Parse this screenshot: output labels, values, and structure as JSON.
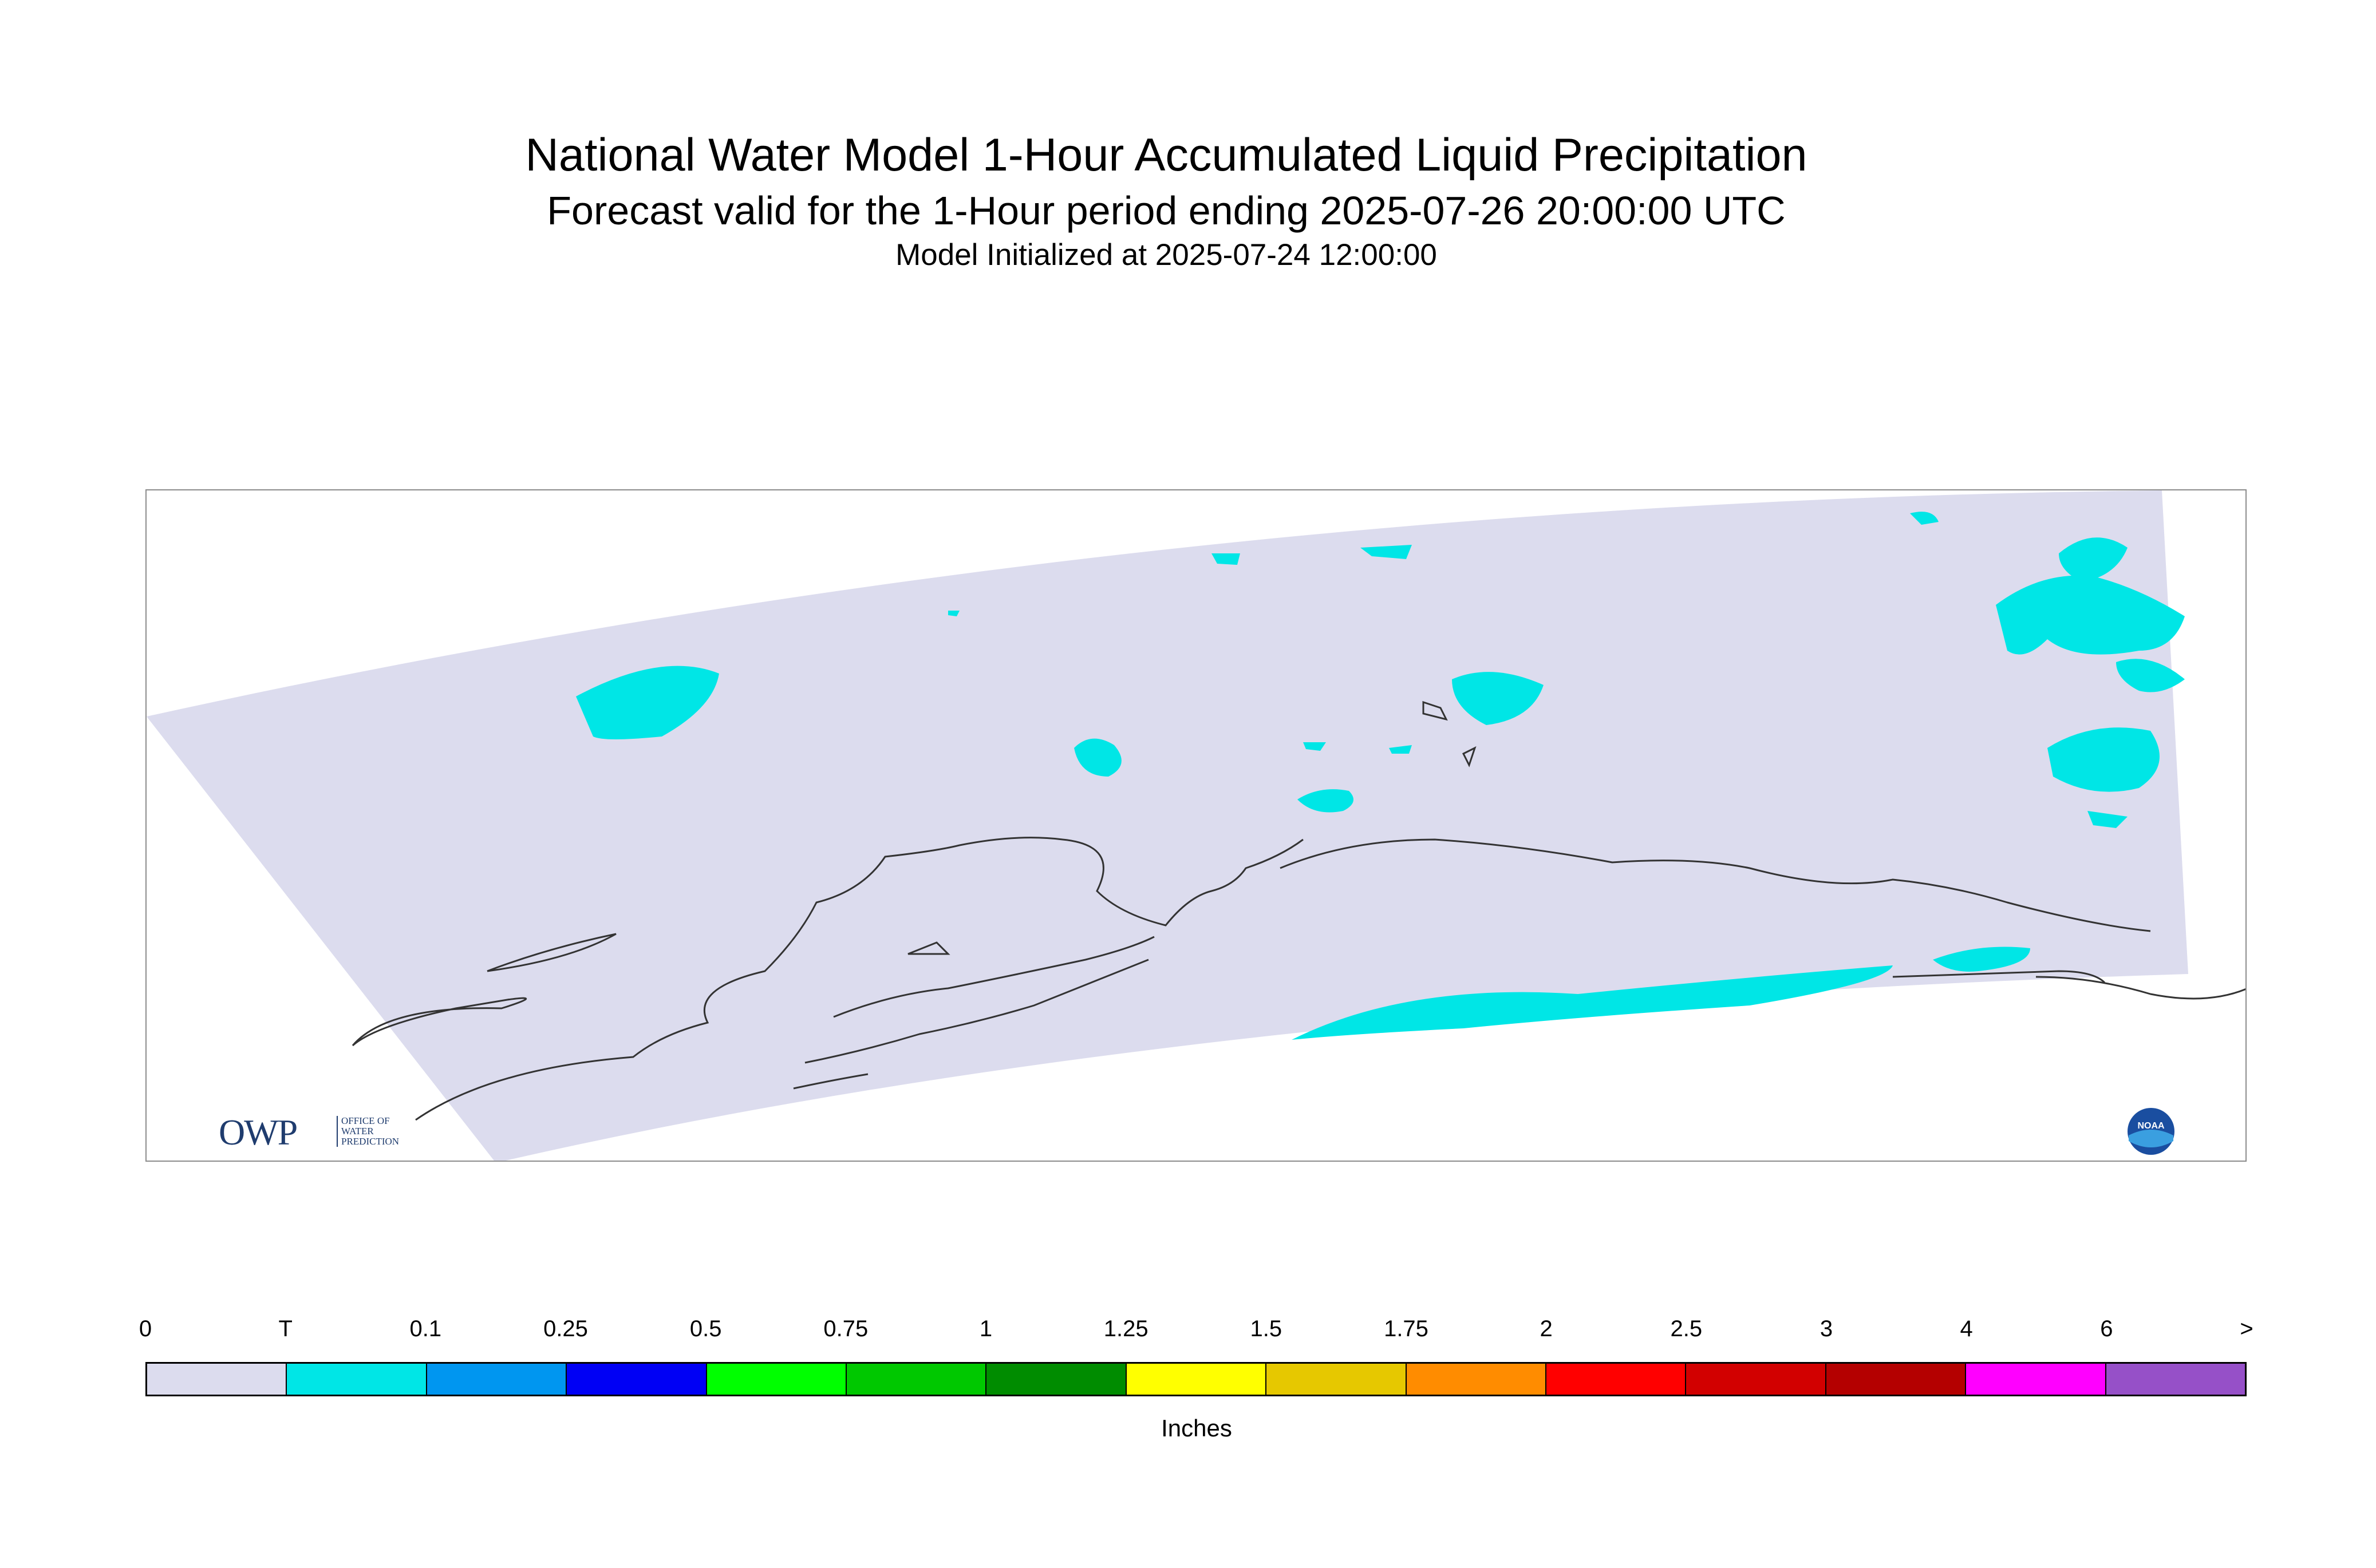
{
  "title": {
    "line1": "National Water Model 1-Hour Accumulated Liquid Precipitation",
    "line2": "Forecast valid for the 1-Hour period ending 2025-07-26 20:00:00 UTC",
    "line3": "Model Initialized at 2025-07-24 12:00:00"
  },
  "logos": {
    "owp_text": "OWP",
    "owp_sub_1": "OFFICE OF",
    "owp_sub_2": "WATER",
    "owp_sub_3": "PREDICTION",
    "noaa_text": "NOAA"
  },
  "legend": {
    "ticks": [
      "0",
      "T",
      "0.1",
      "0.25",
      "0.5",
      "0.75",
      "1",
      "1.25",
      "1.5",
      "1.75",
      "2",
      "2.5",
      "3",
      "4",
      "6",
      ">"
    ],
    "colors": [
      "#dcdcee",
      "#00e6e6",
      "#0096f0",
      "#0000f5",
      "#00ff00",
      "#00c800",
      "#008c00",
      "#ffff00",
      "#e6c800",
      "#ff8c00",
      "#ff0000",
      "#d20000",
      "#b40000",
      "#ff00ff",
      "#9650c8"
    ],
    "units": "Inches"
  },
  "map": {
    "domain_color": "#dcdcee",
    "precip_color": "#00e6e6",
    "coast_color": "#333333"
  }
}
